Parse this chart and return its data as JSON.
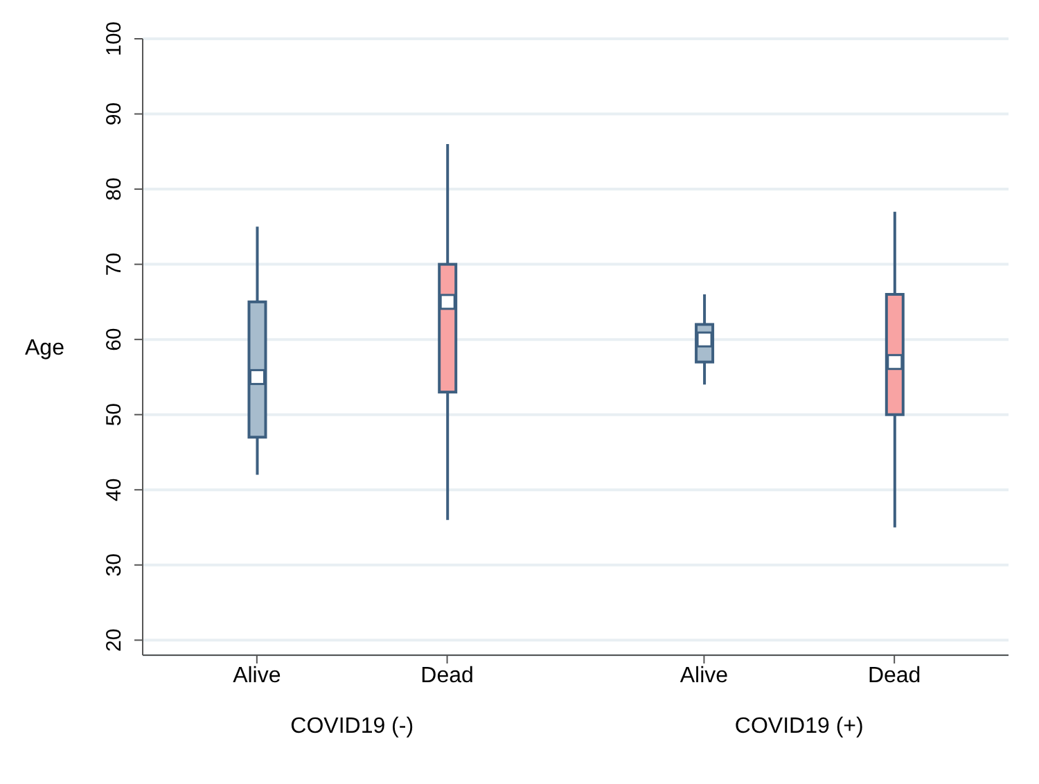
{
  "chart_data": {
    "type": "box",
    "ylabel": "Age",
    "categories": [
      "Alive",
      "Dead",
      "Alive",
      "Dead"
    ],
    "boxes": [
      {
        "low": 42,
        "q1": 47,
        "median": 55,
        "q3": 65,
        "high": 75
      },
      {
        "low": 36,
        "q1": 53,
        "median": 65,
        "q3": 70,
        "high": 86
      },
      {
        "low": 54,
        "q1": 57,
        "median": 60,
        "q3": 62,
        "high": 66
      },
      {
        "low": 35,
        "q1": 50,
        "median": 57,
        "q3": 66,
        "high": 77
      }
    ],
    "colors": [
      "#a7bccd",
      "#f8a3a3",
      "#a7bccd",
      "#f8a3a3"
    ],
    "ylim": [
      18,
      100
    ],
    "yticks": [
      20,
      30,
      40,
      50,
      60,
      70,
      80,
      90,
      100
    ],
    "grid": "y",
    "annotations": [
      "COVID19 (-)",
      "COVID19 (+)"
    ]
  }
}
